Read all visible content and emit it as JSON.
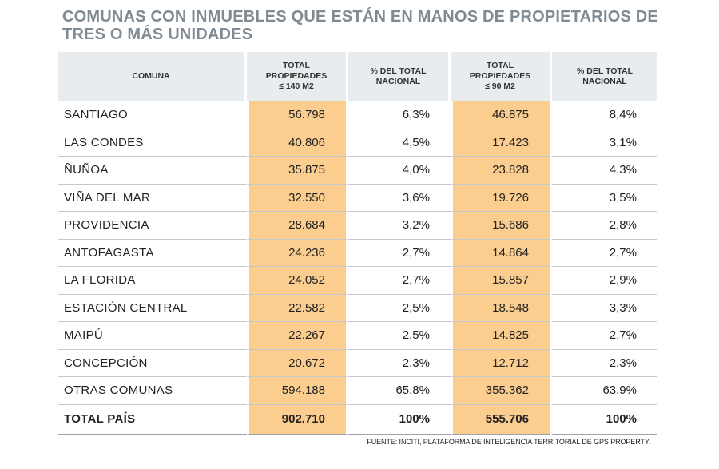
{
  "title": "COMUNAS CON INMUEBLES QUE ESTÁN EN MANOS DE PROPIETARIOS DE TRES O MÁS UNIDADES",
  "source": "FUENTE: INCITI, PLATAFORMA DE INTELIGENCIA TERRITORIAL DE GPS PROPERTY.",
  "colors": {
    "highlight": "#fbcd8e",
    "header_bg": "#e9ecee",
    "title": "#7f8a93"
  },
  "chart_data": {
    "type": "table",
    "title": "COMUNAS CON INMUEBLES QUE ESTÁN EN MANOS DE PROPIETARIOS DE TRES O MÁS UNIDADES",
    "columns": [
      "COMUNA",
      "TOTAL PROPIEDADES ≤ 140 M2",
      "% DEL TOTAL NACIONAL",
      "TOTAL PROPIEDADES ≤ 90 M2",
      "% DEL TOTAL NACIONAL"
    ],
    "rows": [
      [
        "SANTIAGO",
        "56.798",
        "6,3%",
        "46.875",
        "8,4%"
      ],
      [
        "LAS CONDES",
        "40.806",
        "4,5%",
        "17.423",
        "3,1%"
      ],
      [
        "ÑUÑOA",
        "35.875",
        "4,0%",
        "23.828",
        "4,3%"
      ],
      [
        "VIÑA DEL MAR",
        "32.550",
        "3,6%",
        "19.726",
        "3,5%"
      ],
      [
        "PROVIDENCIA",
        "28.684",
        "3,2%",
        "15.686",
        "2,8%"
      ],
      [
        "ANTOFAGASTA",
        "24.236",
        "2,7%",
        "14.864",
        "2,7%"
      ],
      [
        "LA FLORIDA",
        "24.052",
        "2,7%",
        "15.857",
        "2,9%"
      ],
      [
        "ESTACIÓN CENTRAL",
        "22.582",
        "2,5%",
        "18.548",
        "3,3%"
      ],
      [
        "MAIPÚ",
        "22.267",
        "2,5%",
        "14.825",
        "2,7%"
      ],
      [
        "CONCEPCIÓN",
        "20.672",
        "2,3%",
        "12.712",
        "2,3%"
      ],
      [
        "OTRAS COMUNAS",
        "594.188",
        "65,8%",
        "355.362",
        "63,9%"
      ]
    ],
    "total": [
      "TOTAL PAÍS",
      "902.710",
      "100%",
      "555.706",
      "100%"
    ]
  }
}
